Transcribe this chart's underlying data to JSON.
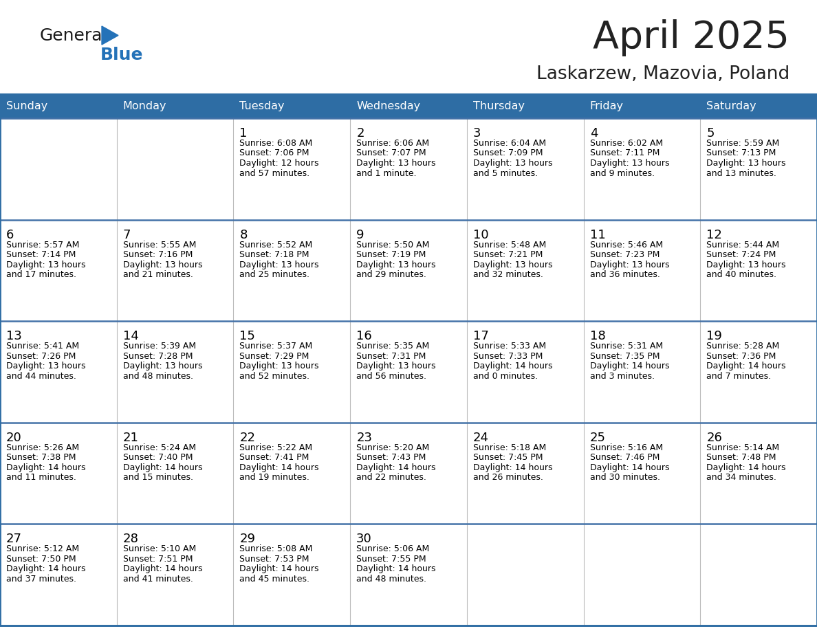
{
  "title": "April 2025",
  "subtitle": "Laskarzew, Mazovia, Poland",
  "days_of_week": [
    "Sunday",
    "Monday",
    "Tuesday",
    "Wednesday",
    "Thursday",
    "Friday",
    "Saturday"
  ],
  "header_bg": "#2E6DA4",
  "header_text": "#FFFFFF",
  "cell_bg": "#FFFFFF",
  "cell_bg_alt": "#F0F0F0",
  "cell_text": "#000000",
  "border_color": "#2E6DA4",
  "sep_line_color": "#4472A8",
  "title_color": "#222222",
  "subtitle_color": "#222222",
  "logo_general_color": "#1a1a1a",
  "logo_blue_color": "#2472B8",
  "weeks": [
    [
      {
        "day": "",
        "info": ""
      },
      {
        "day": "",
        "info": ""
      },
      {
        "day": "1",
        "info": "Sunrise: 6:08 AM\nSunset: 7:06 PM\nDaylight: 12 hours\nand 57 minutes."
      },
      {
        "day": "2",
        "info": "Sunrise: 6:06 AM\nSunset: 7:07 PM\nDaylight: 13 hours\nand 1 minute."
      },
      {
        "day": "3",
        "info": "Sunrise: 6:04 AM\nSunset: 7:09 PM\nDaylight: 13 hours\nand 5 minutes."
      },
      {
        "day": "4",
        "info": "Sunrise: 6:02 AM\nSunset: 7:11 PM\nDaylight: 13 hours\nand 9 minutes."
      },
      {
        "day": "5",
        "info": "Sunrise: 5:59 AM\nSunset: 7:13 PM\nDaylight: 13 hours\nand 13 minutes."
      }
    ],
    [
      {
        "day": "6",
        "info": "Sunrise: 5:57 AM\nSunset: 7:14 PM\nDaylight: 13 hours\nand 17 minutes."
      },
      {
        "day": "7",
        "info": "Sunrise: 5:55 AM\nSunset: 7:16 PM\nDaylight: 13 hours\nand 21 minutes."
      },
      {
        "day": "8",
        "info": "Sunrise: 5:52 AM\nSunset: 7:18 PM\nDaylight: 13 hours\nand 25 minutes."
      },
      {
        "day": "9",
        "info": "Sunrise: 5:50 AM\nSunset: 7:19 PM\nDaylight: 13 hours\nand 29 minutes."
      },
      {
        "day": "10",
        "info": "Sunrise: 5:48 AM\nSunset: 7:21 PM\nDaylight: 13 hours\nand 32 minutes."
      },
      {
        "day": "11",
        "info": "Sunrise: 5:46 AM\nSunset: 7:23 PM\nDaylight: 13 hours\nand 36 minutes."
      },
      {
        "day": "12",
        "info": "Sunrise: 5:44 AM\nSunset: 7:24 PM\nDaylight: 13 hours\nand 40 minutes."
      }
    ],
    [
      {
        "day": "13",
        "info": "Sunrise: 5:41 AM\nSunset: 7:26 PM\nDaylight: 13 hours\nand 44 minutes."
      },
      {
        "day": "14",
        "info": "Sunrise: 5:39 AM\nSunset: 7:28 PM\nDaylight: 13 hours\nand 48 minutes."
      },
      {
        "day": "15",
        "info": "Sunrise: 5:37 AM\nSunset: 7:29 PM\nDaylight: 13 hours\nand 52 minutes."
      },
      {
        "day": "16",
        "info": "Sunrise: 5:35 AM\nSunset: 7:31 PM\nDaylight: 13 hours\nand 56 minutes."
      },
      {
        "day": "17",
        "info": "Sunrise: 5:33 AM\nSunset: 7:33 PM\nDaylight: 14 hours\nand 0 minutes."
      },
      {
        "day": "18",
        "info": "Sunrise: 5:31 AM\nSunset: 7:35 PM\nDaylight: 14 hours\nand 3 minutes."
      },
      {
        "day": "19",
        "info": "Sunrise: 5:28 AM\nSunset: 7:36 PM\nDaylight: 14 hours\nand 7 minutes."
      }
    ],
    [
      {
        "day": "20",
        "info": "Sunrise: 5:26 AM\nSunset: 7:38 PM\nDaylight: 14 hours\nand 11 minutes."
      },
      {
        "day": "21",
        "info": "Sunrise: 5:24 AM\nSunset: 7:40 PM\nDaylight: 14 hours\nand 15 minutes."
      },
      {
        "day": "22",
        "info": "Sunrise: 5:22 AM\nSunset: 7:41 PM\nDaylight: 14 hours\nand 19 minutes."
      },
      {
        "day": "23",
        "info": "Sunrise: 5:20 AM\nSunset: 7:43 PM\nDaylight: 14 hours\nand 22 minutes."
      },
      {
        "day": "24",
        "info": "Sunrise: 5:18 AM\nSunset: 7:45 PM\nDaylight: 14 hours\nand 26 minutes."
      },
      {
        "day": "25",
        "info": "Sunrise: 5:16 AM\nSunset: 7:46 PM\nDaylight: 14 hours\nand 30 minutes."
      },
      {
        "day": "26",
        "info": "Sunrise: 5:14 AM\nSunset: 7:48 PM\nDaylight: 14 hours\nand 34 minutes."
      }
    ],
    [
      {
        "day": "27",
        "info": "Sunrise: 5:12 AM\nSunset: 7:50 PM\nDaylight: 14 hours\nand 37 minutes."
      },
      {
        "day": "28",
        "info": "Sunrise: 5:10 AM\nSunset: 7:51 PM\nDaylight: 14 hours\nand 41 minutes."
      },
      {
        "day": "29",
        "info": "Sunrise: 5:08 AM\nSunset: 7:53 PM\nDaylight: 14 hours\nand 45 minutes."
      },
      {
        "day": "30",
        "info": "Sunrise: 5:06 AM\nSunset: 7:55 PM\nDaylight: 14 hours\nand 48 minutes."
      },
      {
        "day": "",
        "info": ""
      },
      {
        "day": "",
        "info": ""
      },
      {
        "day": "",
        "info": ""
      }
    ]
  ]
}
